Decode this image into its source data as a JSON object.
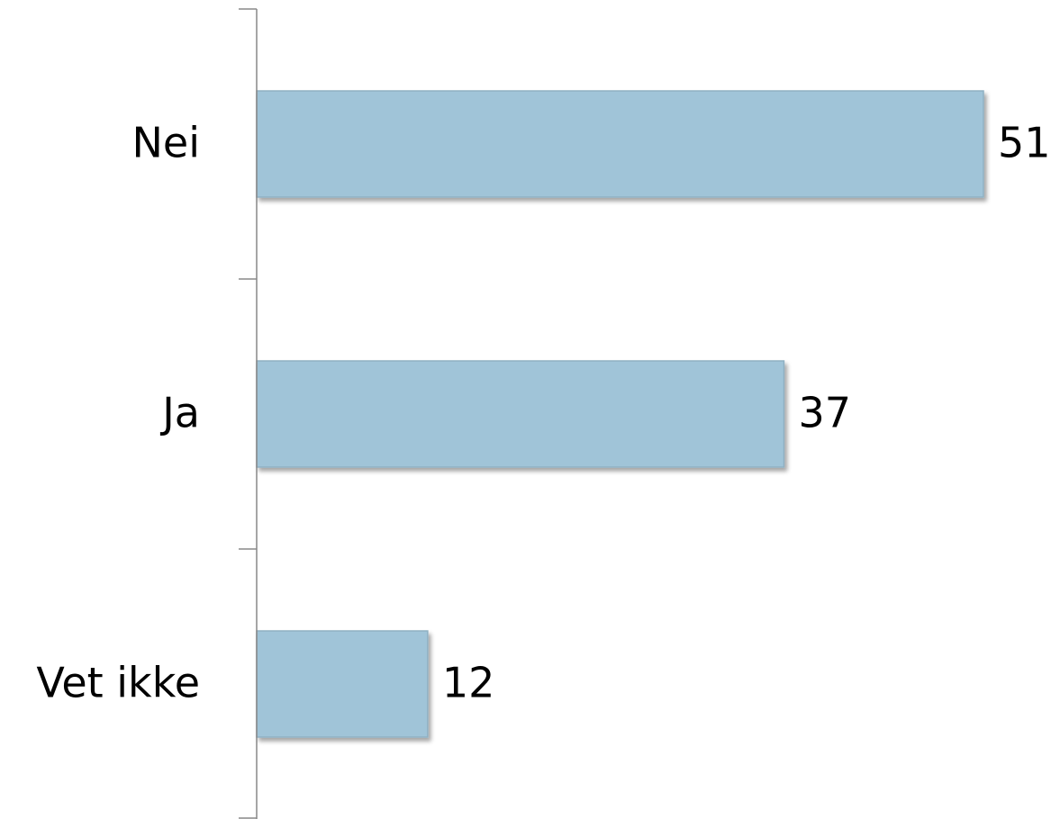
{
  "chart_data": {
    "type": "barh",
    "categories": [
      "Nei",
      "Ja",
      "Vet ikke"
    ],
    "values": [
      51,
      37,
      12
    ],
    "color": "#a0c4d8"
  }
}
